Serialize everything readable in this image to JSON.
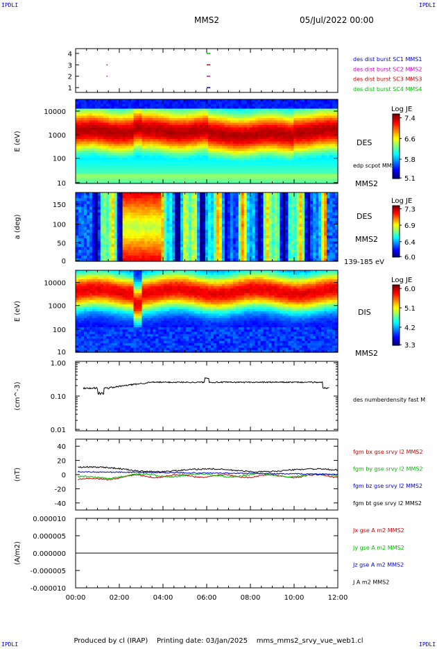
{
  "header": {
    "corner_tl": "IPDLI",
    "corner_tr": "IPDLI",
    "corner_bl": "IPDLI",
    "corner_br": "IPDLI",
    "spacecraft": "MMS2",
    "date": "05/Jul/2022 00:00"
  },
  "footer": {
    "produced": "Produced by cl (IRAP)",
    "printing": "Printing date: 03/Jan/2025",
    "config": "mms_mms2_srvy_vue_web1.cl"
  },
  "colors": {
    "mms1": "#0000cc",
    "mms2": "#cc00cc",
    "mms3": "#cc0000",
    "mms4": "#00bb00",
    "black": "#000000"
  },
  "chart_data": [
    {
      "type": "scatter",
      "panel": "burst",
      "yticks": [
        "4",
        "3",
        "2",
        "1"
      ],
      "ylim": [
        0.5,
        4.5
      ],
      "xlim": [
        "00:00",
        "12:00"
      ],
      "legend": [
        {
          "name": "des dist burst SC1 MMS1",
          "color": "#0000cc"
        },
        {
          "name": "des dist burst SC2 MMS2",
          "color": "#cc00cc"
        },
        {
          "name": "des dist burst SC3 MMS3",
          "color": "#cc0000"
        },
        {
          "name": "des dist burst SC4 MMS4",
          "color": "#00bb00"
        }
      ],
      "segments": [
        {
          "sc": 4,
          "start": "06:00",
          "end": "06:10"
        },
        {
          "sc": 3,
          "start": "01:25",
          "end": "01:27"
        },
        {
          "sc": 3,
          "start": "06:00",
          "end": "06:10"
        },
        {
          "sc": 2,
          "start": "01:25",
          "end": "01:27"
        },
        {
          "sc": 2,
          "start": "06:00",
          "end": "06:10"
        },
        {
          "sc": 1,
          "start": "06:00",
          "end": "06:10"
        }
      ]
    },
    {
      "type": "heatmap",
      "panel": "des-energy",
      "ylabel": "E (eV)",
      "yticks": [
        "10000",
        "1000",
        "100",
        "10"
      ],
      "ylim": [
        10,
        30000
      ],
      "yscale": "log",
      "colorbar": {
        "title": "Log JE",
        "ticks": [
          "7.4",
          "6.6",
          "5.8",
          "5.1"
        ],
        "range": [
          5.1,
          7.5
        ]
      },
      "labels": [
        "DES",
        "edp scpot MMS2",
        "MMS2"
      ]
    },
    {
      "type": "heatmap",
      "panel": "des-pitch",
      "ylabel": "a (deg)",
      "yticks": [
        "150",
        "100",
        "50",
        "0"
      ],
      "ylim": [
        0,
        180
      ],
      "colorbar": {
        "title": "Log JE",
        "ticks": [
          "7.3",
          "6.9",
          "6.4",
          "6.0"
        ],
        "range": [
          6.0,
          7.4
        ]
      },
      "labels": [
        "DES",
        "MMS2",
        "139-185 eV"
      ]
    },
    {
      "type": "heatmap",
      "panel": "dis-energy",
      "ylabel": "E (eV)",
      "yticks": [
        "10000",
        "1000",
        "100",
        "10"
      ],
      "ylim": [
        10,
        30000
      ],
      "yscale": "log",
      "colorbar": {
        "title": "Log JE",
        "ticks": [
          "6.0",
          "5.1",
          "4.2",
          "3.3"
        ],
        "range": [
          3.3,
          6.3
        ]
      },
      "labels": [
        "DIS",
        "MMS2"
      ]
    },
    {
      "type": "line",
      "panel": "density",
      "ylabel": "(cm^-3)",
      "yticks": [
        "1.00",
        "0.10",
        "0.01"
      ],
      "ylim": [
        0.01,
        1.0
      ],
      "yscale": "log",
      "series": [
        {
          "name": "des numberdensity fast M",
          "color": "#000000"
        }
      ]
    },
    {
      "type": "line",
      "panel": "fgm",
      "ylabel": "(nT)",
      "yticks": [
        "40",
        "20",
        "0",
        "-20",
        "-40"
      ],
      "ylim": [
        -50,
        50
      ],
      "series": [
        {
          "name": "fgm bx gse srvy l2 MMS2",
          "color": "#cc0000"
        },
        {
          "name": "fgm by gse srvy l2 MMS2",
          "color": "#00bb00"
        },
        {
          "name": "fgm bz gse srvy l2 MMS2",
          "color": "#0000cc"
        },
        {
          "name": "fgm bt gse srvy l2 MMS2",
          "color": "#000000"
        }
      ]
    },
    {
      "type": "line",
      "panel": "current",
      "ylabel": "(A/m2)",
      "yticks": [
        "0.000010",
        "0.000005",
        "0.000000",
        "-0.000005",
        "-0.000010"
      ],
      "ylim": [
        -1e-05,
        1e-05
      ],
      "series": [
        {
          "name": "Jx gse A m2 MMS2",
          "color": "#cc0000"
        },
        {
          "name": "Jy gse A m2 MMS2",
          "color": "#00bb00"
        },
        {
          "name": "Jz gse A m2 MMS2",
          "color": "#0000cc"
        },
        {
          "name": "J A m2 MMS2",
          "color": "#000000"
        }
      ]
    }
  ],
  "xaxis": {
    "ticks": [
      "00:00",
      "02:00",
      "04:00",
      "06:00",
      "08:00",
      "10:00",
      "12:00"
    ]
  }
}
